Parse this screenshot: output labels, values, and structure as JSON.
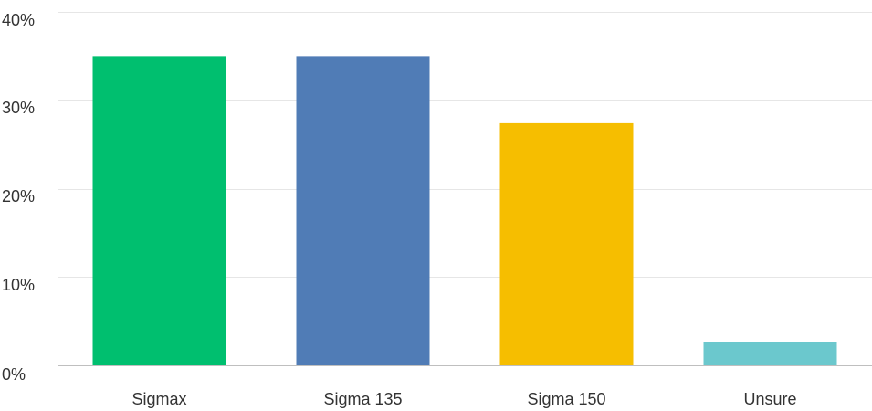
{
  "chart_data": {
    "type": "bar",
    "title": "",
    "xlabel": "",
    "ylabel": "",
    "categories": [
      "Sigmax",
      "Sigma 135",
      "Sigma 150",
      "Unsure"
    ],
    "values": [
      35.0,
      35.0,
      27.4,
      2.6
    ],
    "colors": [
      "#00BF6F",
      "#507CB6",
      "#F6BE00",
      "#6BC8CD"
    ],
    "ylim": [
      0,
      40
    ],
    "yticks": [
      0,
      10,
      20,
      30,
      40
    ],
    "ytick_labels": [
      "0%",
      "10%",
      "20%",
      "30%",
      "40%"
    ],
    "grid": true,
    "legend": "none"
  }
}
